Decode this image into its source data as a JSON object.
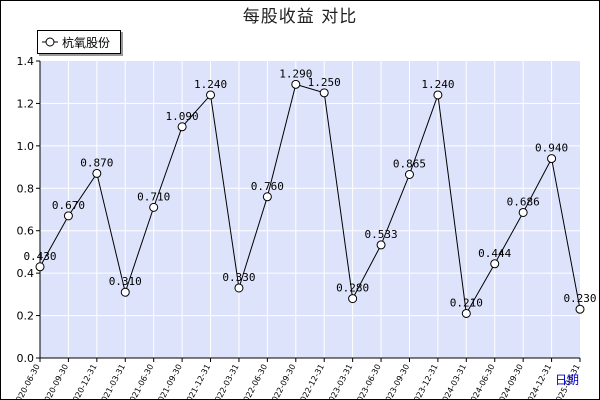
{
  "chart_data": {
    "type": "line",
    "title": "每股收益  对比",
    "x_unit_label": "日期",
    "categories": [
      "2020-06-30",
      "2020-09-30",
      "2020-12-31",
      "2021-03-31",
      "2021-06-30",
      "2021-09-30",
      "2021-12-31",
      "2022-03-31",
      "2022-06-30",
      "2022-09-30",
      "2022-12-31",
      "2023-03-31",
      "2023-06-30",
      "2023-09-30",
      "2023-12-31",
      "2024-03-31",
      "2024-06-30",
      "2024-09-30",
      "2024-12-31",
      "2025-03-31"
    ],
    "series": [
      {
        "name": "杭氧股份",
        "values": [
          0.43,
          0.67,
          0.87,
          0.31,
          0.71,
          1.09,
          1.24,
          0.33,
          0.76,
          1.29,
          1.25,
          0.28,
          0.533,
          0.865,
          1.24,
          0.21,
          0.444,
          0.686,
          0.94,
          0.23
        ]
      }
    ],
    "data_labels": [
      "0.430",
      "0.670",
      "0.870",
      "0.310",
      "0.710",
      "1.090",
      "1.240",
      "0.330",
      "0.760",
      "1.290",
      "1.250",
      "0.280",
      "0.533",
      "0.865",
      "1.240",
      "0.210",
      "0.444",
      "0.686",
      "0.940",
      "0.230"
    ],
    "y_ticks": [
      "0.0",
      "0.2",
      "0.4",
      "0.6",
      "0.8",
      "1.0",
      "1.2",
      "1.4"
    ],
    "ylim": [
      0,
      1.4
    ],
    "grid": true,
    "legend_position": "top-left",
    "colors": {
      "plot_bg": "#dde3fb",
      "grid": "#ffffff",
      "line": "#000000",
      "marker_fill": "#ffffff"
    }
  }
}
